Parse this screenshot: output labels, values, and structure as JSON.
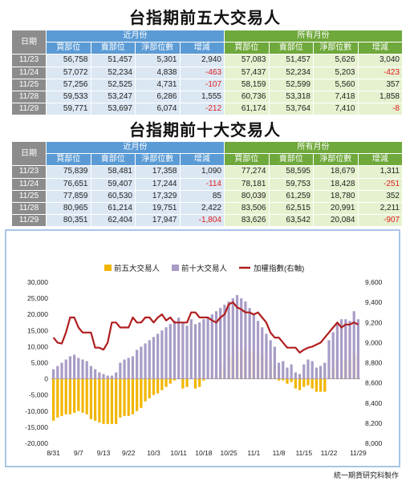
{
  "table1": {
    "title": "台指期前五大交易人",
    "headers": {
      "date": "日期",
      "near_group": "近月份",
      "all_group": "所有月份",
      "cols": [
        "買部位",
        "賣部位",
        "淨部位數",
        "增減",
        "買部位",
        "賣部位",
        "淨部位數",
        "增減"
      ]
    },
    "rows": [
      {
        "date": "11/23",
        "cells": [
          "56,758",
          "51,457",
          "5,301",
          "2,940",
          "57,083",
          "51,457",
          "5,626",
          "3,040"
        ]
      },
      {
        "date": "11/24",
        "cells": [
          "57,072",
          "52,234",
          "4,838",
          "-463",
          "57,437",
          "52,234",
          "5,203",
          "-423"
        ]
      },
      {
        "date": "11/25",
        "cells": [
          "57,256",
          "52,525",
          "4,731",
          "-107",
          "58,159",
          "52,599",
          "5,560",
          "357"
        ]
      },
      {
        "date": "11/28",
        "cells": [
          "59,533",
          "53,247",
          "6,286",
          "1,555",
          "60,736",
          "53,318",
          "7,418",
          "1,858"
        ]
      },
      {
        "date": "11/29",
        "cells": [
          "59,771",
          "53,697",
          "6,074",
          "-212",
          "61,174",
          "53,764",
          "7,410",
          "-8"
        ]
      }
    ]
  },
  "table2": {
    "title": "台指期前十大交易人",
    "headers": {
      "date": "日期",
      "near_group": "近月份",
      "all_group": "所有月份",
      "cols": [
        "買部位",
        "賣部位",
        "淨部位數",
        "增減",
        "買部位",
        "賣部位",
        "淨部位數",
        "增減"
      ]
    },
    "rows": [
      {
        "date": "11/23",
        "cells": [
          "75,839",
          "58,481",
          "17,358",
          "1,090",
          "77,274",
          "58,595",
          "18,679",
          "1,311"
        ]
      },
      {
        "date": "11/24",
        "cells": [
          "76,651",
          "59,407",
          "17,244",
          "-114",
          "78,181",
          "59,753",
          "18,428",
          "-251"
        ]
      },
      {
        "date": "11/25",
        "cells": [
          "77,859",
          "60,530",
          "17,329",
          "85",
          "80,039",
          "61,259",
          "18,780",
          "352"
        ]
      },
      {
        "date": "11/28",
        "cells": [
          "80,965",
          "61,214",
          "19,751",
          "2,422",
          "83,506",
          "62,515",
          "20,991",
          "2,211"
        ]
      },
      {
        "date": "11/29",
        "cells": [
          "80,351",
          "62,404",
          "17,947",
          "-1,804",
          "83,626",
          "63,542",
          "20,084",
          "-907"
        ]
      }
    ]
  },
  "chart_data": {
    "type": "bar",
    "series": [
      {
        "name": "前五大交易人",
        "color": "#f2b600",
        "axis": "left",
        "values": [
          -13000,
          -12000,
          -11500,
          -11000,
          -11000,
          -10500,
          -10000,
          -10500,
          -11000,
          -12500,
          -13000,
          -13500,
          -14000,
          -14000,
          -14000,
          -14000,
          -12000,
          -11500,
          -11500,
          -11000,
          -10000,
          -9000,
          -7000,
          -6000,
          -5000,
          -4500,
          -3500,
          -2500,
          -1500,
          -500,
          0,
          -3000,
          -2500,
          0,
          -3000,
          -2500,
          -500,
          0,
          500,
          1500,
          3000,
          5000,
          6500,
          7500,
          8500,
          9000,
          9500,
          9000,
          8500,
          8000,
          7500,
          6500,
          5500,
          4500,
          -500,
          -500,
          -1500,
          -1000,
          -3000,
          -3500,
          -2500,
          -2000,
          -3000,
          -4000,
          -4000,
          -4000,
          1000,
          3500,
          5500,
          5500,
          5500,
          6000,
          7500,
          7500
        ]
      },
      {
        "name": "前十大交易人",
        "color": "#a99cc6",
        "axis": "left",
        "values": [
          3000,
          4000,
          5000,
          6000,
          7000,
          7500,
          6500,
          6000,
          5500,
          4000,
          3000,
          2000,
          1500,
          1000,
          1000,
          2000,
          5000,
          6000,
          6500,
          7000,
          9000,
          10000,
          11000,
          12000,
          13000,
          14000,
          15000,
          16000,
          17000,
          18000,
          19000,
          17500,
          16500,
          18500,
          17000,
          17500,
          18500,
          19000,
          20000,
          21000,
          22000,
          23000,
          24000,
          25000,
          26000,
          25000,
          24000,
          22000,
          20000,
          18000,
          16000,
          14000,
          12000,
          10000,
          5000,
          5500,
          3500,
          4500,
          2000,
          1500,
          4500,
          6000,
          5500,
          3500,
          4000,
          5000,
          12000,
          14500,
          17500,
          18500,
          18500,
          18000,
          21000,
          18500
        ]
      },
      {
        "name": "加權指數(右軸)",
        "color": "#b01e1e",
        "axis": "right",
        "type": "line",
        "values": [
          9050,
          9000,
          8990,
          9100,
          9250,
          9250,
          9150,
          9100,
          9100,
          9100,
          8950,
          8950,
          8930,
          9000,
          9200,
          9200,
          9150,
          9150,
          9150,
          9250,
          9200,
          9200,
          9250,
          9250,
          9200,
          9250,
          9280,
          9220,
          9250,
          9200,
          9200,
          9200,
          9200,
          9300,
          9300,
          9250,
          9250,
          9250,
          9220,
          9200,
          9250,
          9280,
          9380,
          9400,
          9350,
          9330,
          9300,
          9300,
          9280,
          9300,
          9250,
          9200,
          9100,
          9050,
          9050,
          9000,
          8950,
          8950,
          8950,
          8900,
          8930,
          8950,
          8960,
          8980,
          9000,
          9050,
          9100,
          9150,
          9200,
          9150,
          9180,
          9180,
          9200,
          9180
        ]
      }
    ],
    "x_labels": [
      "8/31",
      "9/7",
      "9/13",
      "9/22",
      "10/3",
      "10/11",
      "10/18",
      "10/25",
      "11/1",
      "11/8",
      "11/15",
      "11/22",
      "11/29"
    ],
    "x_label_indices": [
      0,
      6,
      12,
      18,
      24,
      30,
      36,
      42,
      48,
      54,
      60,
      66,
      73
    ],
    "left_axis": {
      "min": -20000,
      "max": 30000,
      "ticks": [
        "30,000",
        "25,000",
        "20,000",
        "15,000",
        "10,000",
        "5,000",
        "0",
        "-5,000",
        "-10,000",
        "-15,000",
        "-20,000"
      ]
    },
    "right_axis": {
      "min": 8000,
      "max": 9600,
      "ticks": [
        "9,600",
        "9,400",
        "9,200",
        "9,000",
        "8,800",
        "8,600",
        "8,400",
        "8,200",
        "8,000"
      ]
    },
    "legend_placement": "top-center",
    "grid": false
  },
  "credit": "統一期貨研究科製作"
}
